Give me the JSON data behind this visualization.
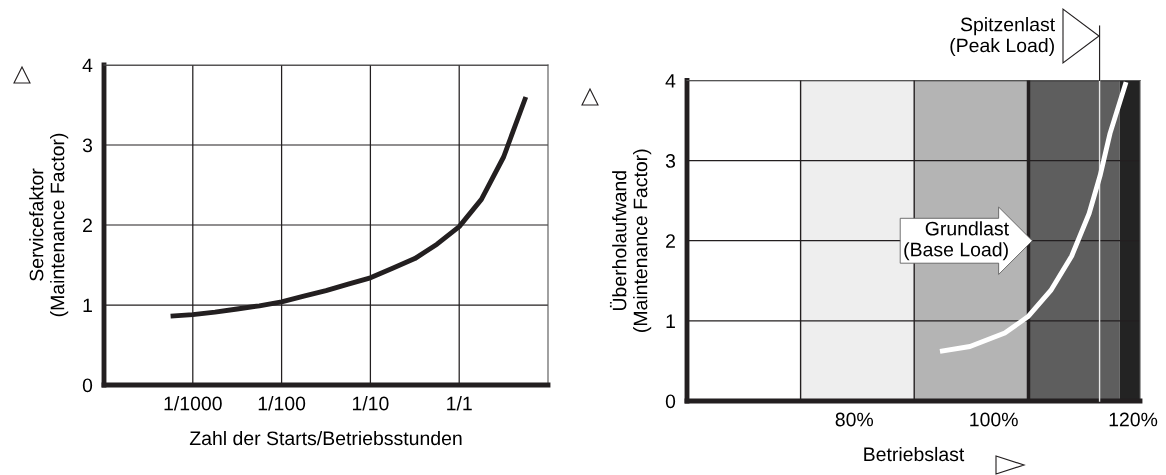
{
  "chart_data": [
    {
      "type": "line",
      "xlabel": "Zahl der Starts/Betriebsstunden",
      "ylabel": "Servicefaktor\n(Maintenance Factor)",
      "categories": [
        null,
        null,
        null,
        null,
        "1/1000",
        null,
        null,
        null,
        "1/100",
        null,
        null,
        null,
        "1/10",
        null,
        null,
        null,
        "1/1",
        null,
        null,
        null,
        null
      ],
      "series": [
        {
          "color": "#231f20",
          "values": [
            null,
            null,
            null,
            0.86,
            0.88,
            0.91,
            0.95,
            0.99,
            1.04,
            1.11,
            1.18,
            1.26,
            1.34,
            1.46,
            1.58,
            1.76,
            1.98,
            2.32,
            2.85,
            3.6,
            null
          ]
        }
      ],
      "ylim": [
        0,
        4
      ],
      "yticks": [
        0,
        1,
        2,
        3,
        4
      ],
      "grid": true,
      "marker": "none",
      "line_style": "solid"
    },
    {
      "type": "line",
      "xlabel": "Betriebslast",
      "ylabel": "Überholaufwand\n(Maintenance Factor)",
      "x": [
        92.3,
        96.6,
        101.6,
        104.9,
        108.2,
        111.2,
        113.7,
        115.3,
        116.7,
        119
      ],
      "series": [
        {
          "color": "#ffffff",
          "values": [
            0.62,
            0.68,
            0.85,
            1.05,
            1.38,
            1.81,
            2.34,
            2.82,
            3.34,
            3.98
          ]
        }
      ],
      "xlim": [
        56,
        121
      ],
      "xticks": [
        {
          "value": 80,
          "label": "80%"
        },
        {
          "value": 100,
          "label": "100%"
        },
        {
          "value": 120,
          "label": "120%"
        }
      ],
      "ylim": [
        0,
        4
      ],
      "yticks": [
        0,
        1,
        2,
        3,
        4
      ],
      "grid": "y",
      "marker": "none",
      "line_style": "solid",
      "bands": [
        {
          "axis": "x",
          "from": 72.3,
          "to": 88.6,
          "color": "#eeeeee"
        },
        {
          "axis": "x",
          "from": 88.6,
          "to": 105,
          "color": "#b4b4b4"
        },
        {
          "axis": "x",
          "from": 105,
          "to": 118.1,
          "color": "#5e5e5e"
        },
        {
          "axis": "x",
          "from": 118.1,
          "to": 121,
          "color": "#232323"
        }
      ],
      "ref_lines": [
        {
          "axis": "x",
          "value": 72.3,
          "color": "#231f20"
        },
        {
          "axis": "x",
          "value": 88.6,
          "color": "#231f20"
        },
        {
          "axis": "x",
          "value": 105,
          "label": "Grundlast\n(Base Load)",
          "color": "#231f20"
        },
        {
          "axis": "x",
          "value": 115.2,
          "label": "Spitzenlast\n(Peak Load)",
          "color": "#e6e6e6"
        }
      ]
    }
  ]
}
